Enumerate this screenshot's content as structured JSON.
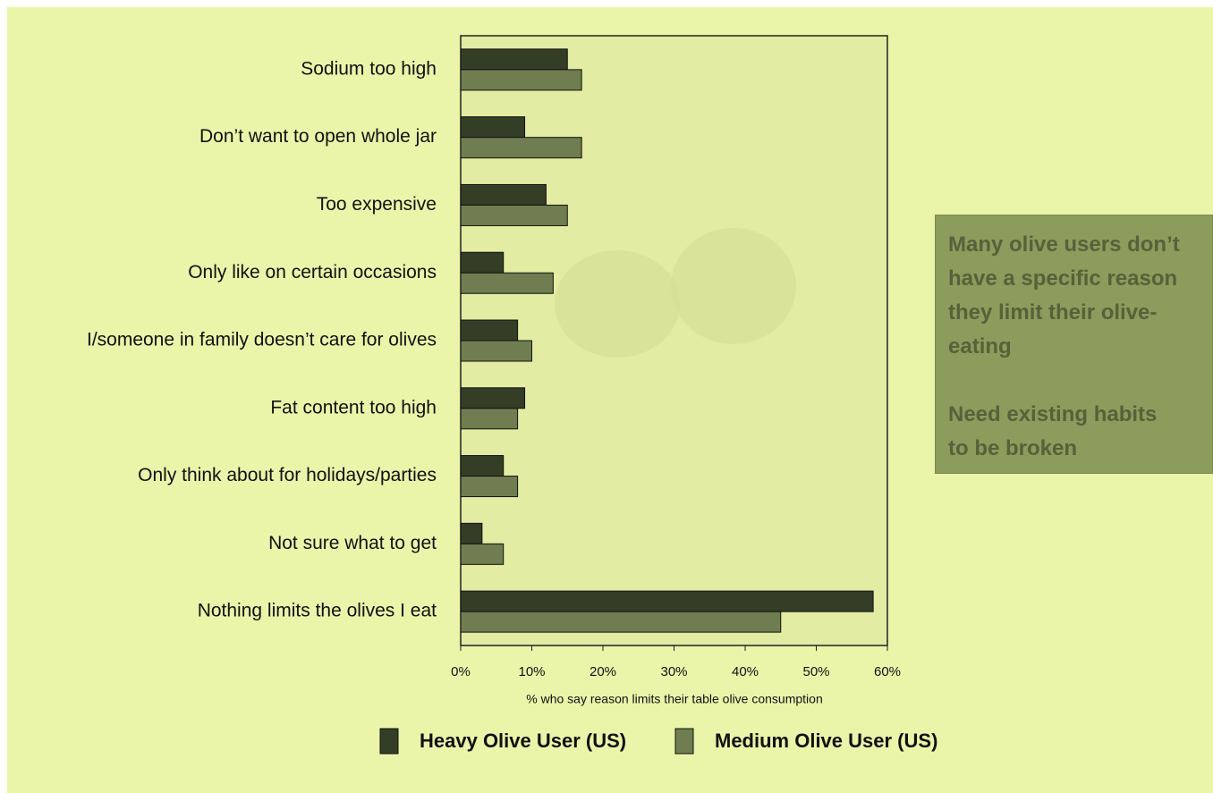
{
  "chart_data": {
    "type": "hbar",
    "categories": [
      "Sodium too high",
      "Don’t want to open whole jar",
      "Too expensive",
      "Only like on certain occasions",
      "I/someone in family doesn’t care for olives",
      "Fat content too high",
      "Only think about for holidays/parties",
      "Not sure what to get",
      "Nothing limits the olives I eat"
    ],
    "series": [
      {
        "name": "Heavy Olive User (US)",
        "color": "#343d26",
        "values": [
          15,
          9,
          12,
          6,
          8,
          9,
          6,
          3,
          58
        ]
      },
      {
        "name": "Medium Olive User (US)",
        "color": "#6f7d50",
        "values": [
          17,
          17,
          15,
          13,
          10,
          8,
          8,
          6,
          45
        ]
      }
    ],
    "xlim": [
      0,
      60
    ],
    "xticks": [
      {
        "value": 0,
        "label": "0%"
      },
      {
        "value": 10,
        "label": "10%"
      },
      {
        "value": 20,
        "label": "20%"
      },
      {
        "value": 30,
        "label": "30%"
      },
      {
        "value": 40,
        "label": "40%"
      },
      {
        "value": 50,
        "label": "50%"
      },
      {
        "value": 60,
        "label": "60%"
      }
    ],
    "x_label": "% who say reason limits their table olive consumption",
    "legend": "bottom"
  },
  "note": {
    "paragraphs": [
      [
        "Many olive users don’t",
        "have a specific reason",
        "they limit their olive-",
        "eating"
      ],
      [
        "Need existing habits",
        "to be broken"
      ]
    ]
  }
}
